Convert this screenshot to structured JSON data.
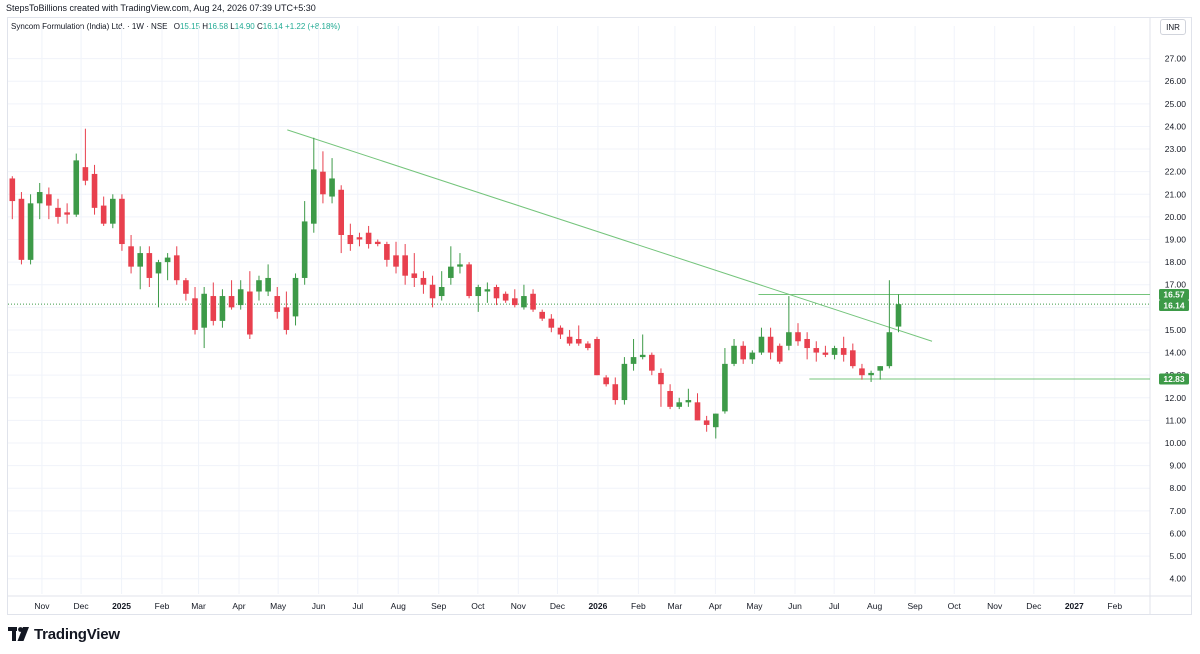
{
  "header": {
    "attribution": "StepsToBillions created with TradingView.com, Aug 24, 2026 07:39 UTC+5:30"
  },
  "legend": {
    "symbol": "Syncom Formulation (India) Ltd. · 1W · NSE",
    "open_label": "O",
    "open": "15.15",
    "high_label": "H",
    "high": "16.58",
    "low_label": "L",
    "low": "14.90",
    "close_label": "C",
    "close": "16.14",
    "change": "+1.22 (+8.18%)"
  },
  "currency": "INR",
  "brand": {
    "name": "TradingView"
  },
  "colors": {
    "up": "#3d9a48",
    "down": "#e8404e",
    "trendline": "#74c47b",
    "grid": "#f0f3fa",
    "axis_text": "#131722",
    "label_bg": "#3d9a48"
  },
  "chart_data": {
    "type": "candlestick",
    "interval": "1W",
    "ylim": [
      3.5,
      28.0
    ],
    "y_ticks": [
      "27.00",
      "26.00",
      "25.00",
      "24.00",
      "23.00",
      "22.00",
      "21.00",
      "20.00",
      "19.00",
      "18.00",
      "17.00",
      "16.00",
      "15.00",
      "14.00",
      "13.00",
      "12.00",
      "11.00",
      "10.00",
      "9.00",
      "8.00",
      "7.00",
      "6.00",
      "5.00",
      "4.00"
    ],
    "x_ticks": [
      {
        "label": "Nov",
        "t": "2024-11-01"
      },
      {
        "label": "Dec",
        "t": "2024-12-01"
      },
      {
        "label": "2025",
        "t": "2025-01-01",
        "bold": true
      },
      {
        "label": "Feb",
        "t": "2025-02-01"
      },
      {
        "label": "Mar",
        "t": "2025-03-01"
      },
      {
        "label": "Apr",
        "t": "2025-04-01"
      },
      {
        "label": "May",
        "t": "2025-05-01"
      },
      {
        "label": "Jun",
        "t": "2025-06-01"
      },
      {
        "label": "Jul",
        "t": "2025-07-01"
      },
      {
        "label": "Aug",
        "t": "2025-08-01"
      },
      {
        "label": "Sep",
        "t": "2025-09-01"
      },
      {
        "label": "Oct",
        "t": "2025-10-01"
      },
      {
        "label": "Nov",
        "t": "2025-11-01"
      },
      {
        "label": "Dec",
        "t": "2025-12-01"
      },
      {
        "label": "2026",
        "t": "2026-01-01",
        "bold": true
      },
      {
        "label": "Feb",
        "t": "2026-02-01"
      },
      {
        "label": "Mar",
        "t": "2026-03-01"
      },
      {
        "label": "Apr",
        "t": "2026-04-01"
      },
      {
        "label": "May",
        "t": "2026-05-01"
      },
      {
        "label": "Jun",
        "t": "2026-06-01"
      },
      {
        "label": "Jul",
        "t": "2026-07-01"
      },
      {
        "label": "Aug",
        "t": "2026-08-01"
      },
      {
        "label": "Sep",
        "t": "2026-09-01"
      },
      {
        "label": "Oct",
        "t": "2026-10-01"
      },
      {
        "label": "Nov",
        "t": "2026-11-01"
      },
      {
        "label": "Dec",
        "t": "2026-12-01"
      },
      {
        "label": "2027",
        "t": "2027-01-01",
        "bold": true
      },
      {
        "label": "Feb",
        "t": "2027-02-01"
      }
    ],
    "x_range": [
      "2024-10-06",
      "2027-02-28"
    ],
    "candles": [
      {
        "t": "2024-10-07",
        "o": 21.7,
        "h": 21.8,
        "l": 19.9,
        "c": 20.7
      },
      {
        "t": "2024-10-14",
        "o": 20.8,
        "h": 21.1,
        "l": 17.9,
        "c": 18.1
      },
      {
        "t": "2024-10-21",
        "o": 18.1,
        "h": 21.0,
        "l": 17.9,
        "c": 20.6
      },
      {
        "t": "2024-10-28",
        "o": 20.6,
        "h": 21.5,
        "l": 19.9,
        "c": 21.1
      },
      {
        "t": "2024-11-04",
        "o": 21.0,
        "h": 21.3,
        "l": 19.9,
        "c": 20.5
      },
      {
        "t": "2024-11-11",
        "o": 20.4,
        "h": 20.8,
        "l": 19.7,
        "c": 20.0
      },
      {
        "t": "2024-11-18",
        "o": 20.2,
        "h": 20.6,
        "l": 19.7,
        "c": 20.1
      },
      {
        "t": "2024-11-25",
        "o": 20.1,
        "h": 22.8,
        "l": 20.0,
        "c": 22.5
      },
      {
        "t": "2024-12-02",
        "o": 22.2,
        "h": 23.9,
        "l": 21.4,
        "c": 21.6
      },
      {
        "t": "2024-12-09",
        "o": 21.9,
        "h": 22.3,
        "l": 20.1,
        "c": 20.4
      },
      {
        "t": "2024-12-16",
        "o": 20.5,
        "h": 20.9,
        "l": 19.6,
        "c": 19.7
      },
      {
        "t": "2024-12-23",
        "o": 19.7,
        "h": 21.0,
        "l": 19.5,
        "c": 20.8
      },
      {
        "t": "2024-12-30",
        "o": 20.8,
        "h": 21.0,
        "l": 18.5,
        "c": 18.8
      },
      {
        "t": "2025-01-06",
        "o": 18.7,
        "h": 19.2,
        "l": 17.5,
        "c": 17.8
      },
      {
        "t": "2025-01-13",
        "o": 17.8,
        "h": 18.7,
        "l": 16.8,
        "c": 18.4
      },
      {
        "t": "2025-01-20",
        "o": 18.4,
        "h": 18.7,
        "l": 16.9,
        "c": 17.3
      },
      {
        "t": "2025-01-27",
        "o": 17.5,
        "h": 18.1,
        "l": 16.0,
        "c": 18.0
      },
      {
        "t": "2025-02-03",
        "o": 18.0,
        "h": 18.4,
        "l": 17.2,
        "c": 18.2
      },
      {
        "t": "2025-02-10",
        "o": 18.3,
        "h": 18.7,
        "l": 17.0,
        "c": 17.2
      },
      {
        "t": "2025-02-17",
        "o": 17.2,
        "h": 17.3,
        "l": 16.3,
        "c": 16.6
      },
      {
        "t": "2025-02-24",
        "o": 16.4,
        "h": 16.9,
        "l": 14.8,
        "c": 15.0
      },
      {
        "t": "2025-03-03",
        "o": 15.1,
        "h": 16.9,
        "l": 14.2,
        "c": 16.6
      },
      {
        "t": "2025-03-10",
        "o": 16.5,
        "h": 17.1,
        "l": 15.2,
        "c": 15.4
      },
      {
        "t": "2025-03-17",
        "o": 15.4,
        "h": 16.8,
        "l": 15.1,
        "c": 16.5
      },
      {
        "t": "2025-03-24",
        "o": 16.5,
        "h": 17.2,
        "l": 15.9,
        "c": 16.0
      },
      {
        "t": "2025-03-31",
        "o": 16.1,
        "h": 17.2,
        "l": 15.9,
        "c": 16.8
      },
      {
        "t": "2025-04-07",
        "o": 16.7,
        "h": 17.6,
        "l": 14.6,
        "c": 14.8
      },
      {
        "t": "2025-04-14",
        "o": 16.7,
        "h": 17.4,
        "l": 16.3,
        "c": 17.2
      },
      {
        "t": "2025-04-21",
        "o": 16.7,
        "h": 17.9,
        "l": 16.5,
        "c": 17.3
      },
      {
        "t": "2025-04-28",
        "o": 16.5,
        "h": 16.9,
        "l": 15.5,
        "c": 15.8
      },
      {
        "t": "2025-05-05",
        "o": 16.0,
        "h": 16.7,
        "l": 14.8,
        "c": 15.0
      },
      {
        "t": "2025-05-12",
        "o": 15.6,
        "h": 17.5,
        "l": 15.2,
        "c": 17.3
      },
      {
        "t": "2025-05-19",
        "o": 17.3,
        "h": 20.7,
        "l": 17.0,
        "c": 19.8
      },
      {
        "t": "2025-05-26",
        "o": 19.7,
        "h": 23.5,
        "l": 19.3,
        "c": 22.1
      },
      {
        "t": "2025-06-02",
        "o": 22.0,
        "h": 22.9,
        "l": 20.6,
        "c": 21.0
      },
      {
        "t": "2025-06-09",
        "o": 20.9,
        "h": 22.6,
        "l": 20.6,
        "c": 21.7
      },
      {
        "t": "2025-06-16",
        "o": 21.2,
        "h": 21.4,
        "l": 18.4,
        "c": 19.2
      },
      {
        "t": "2025-06-23",
        "o": 19.2,
        "h": 19.7,
        "l": 18.5,
        "c": 18.8
      },
      {
        "t": "2025-06-30",
        "o": 19.1,
        "h": 19.3,
        "l": 18.7,
        "c": 19.0
      },
      {
        "t": "2025-07-07",
        "o": 19.3,
        "h": 19.6,
        "l": 18.6,
        "c": 18.8
      },
      {
        "t": "2025-07-14",
        "o": 18.9,
        "h": 19.0,
        "l": 18.7,
        "c": 18.8
      },
      {
        "t": "2025-07-21",
        "o": 18.8,
        "h": 18.9,
        "l": 17.8,
        "c": 18.1
      },
      {
        "t": "2025-07-28",
        "o": 18.3,
        "h": 18.9,
        "l": 17.5,
        "c": 17.8
      },
      {
        "t": "2025-08-04",
        "o": 18.3,
        "h": 18.8,
        "l": 17.0,
        "c": 17.4
      },
      {
        "t": "2025-08-11",
        "o": 17.5,
        "h": 18.4,
        "l": 16.9,
        "c": 17.3
      },
      {
        "t": "2025-08-18",
        "o": 17.3,
        "h": 17.6,
        "l": 16.6,
        "c": 17.0
      },
      {
        "t": "2025-08-25",
        "o": 17.0,
        "h": 17.4,
        "l": 16.0,
        "c": 16.4
      },
      {
        "t": "2025-09-01",
        "o": 16.5,
        "h": 17.6,
        "l": 16.3,
        "c": 16.9
      },
      {
        "t": "2025-09-08",
        "o": 17.3,
        "h": 18.7,
        "l": 17.0,
        "c": 17.8
      },
      {
        "t": "2025-09-15",
        "o": 17.8,
        "h": 18.4,
        "l": 17.5,
        "c": 17.9
      },
      {
        "t": "2025-09-22",
        "o": 17.9,
        "h": 18.0,
        "l": 16.4,
        "c": 16.5
      },
      {
        "t": "2025-09-29",
        "o": 16.5,
        "h": 17.0,
        "l": 15.8,
        "c": 16.9
      },
      {
        "t": "2025-10-06",
        "o": 16.7,
        "h": 17.1,
        "l": 16.2,
        "c": 16.8
      },
      {
        "t": "2025-10-13",
        "o": 16.9,
        "h": 17.0,
        "l": 16.1,
        "c": 16.4
      },
      {
        "t": "2025-10-20",
        "o": 16.6,
        "h": 16.7,
        "l": 16.2,
        "c": 16.3
      },
      {
        "t": "2025-10-27",
        "o": 16.4,
        "h": 16.8,
        "l": 16.0,
        "c": 16.1
      },
      {
        "t": "2025-11-03",
        "o": 16.0,
        "h": 17.0,
        "l": 15.9,
        "c": 16.5
      },
      {
        "t": "2025-11-10",
        "o": 16.6,
        "h": 16.8,
        "l": 15.8,
        "c": 15.9
      },
      {
        "t": "2025-11-17",
        "o": 15.8,
        "h": 15.9,
        "l": 15.4,
        "c": 15.5
      },
      {
        "t": "2025-11-24",
        "o": 15.5,
        "h": 15.7,
        "l": 14.9,
        "c": 15.1
      },
      {
        "t": "2025-12-01",
        "o": 15.1,
        "h": 15.2,
        "l": 14.6,
        "c": 14.8
      },
      {
        "t": "2025-12-08",
        "o": 14.7,
        "h": 15.0,
        "l": 14.3,
        "c": 14.4
      },
      {
        "t": "2025-12-15",
        "o": 14.6,
        "h": 15.2,
        "l": 14.3,
        "c": 14.4
      },
      {
        "t": "2025-12-22",
        "o": 14.4,
        "h": 14.5,
        "l": 14.1,
        "c": 14.2
      },
      {
        "t": "2025-12-29",
        "o": 14.6,
        "h": 14.7,
        "l": 13.0,
        "c": 13.0
      },
      {
        "t": "2026-01-05",
        "o": 12.9,
        "h": 13.0,
        "l": 12.5,
        "c": 12.6
      },
      {
        "t": "2026-01-12",
        "o": 12.6,
        "h": 12.9,
        "l": 11.7,
        "c": 11.9
      },
      {
        "t": "2026-01-19",
        "o": 11.9,
        "h": 13.8,
        "l": 11.7,
        "c": 13.5
      },
      {
        "t": "2026-01-26",
        "o": 13.5,
        "h": 14.6,
        "l": 13.2,
        "c": 13.8
      },
      {
        "t": "2026-02-02",
        "o": 13.8,
        "h": 14.8,
        "l": 13.7,
        "c": 13.9
      },
      {
        "t": "2026-02-09",
        "o": 13.9,
        "h": 14.0,
        "l": 13.0,
        "c": 13.2
      },
      {
        "t": "2026-02-16",
        "o": 13.1,
        "h": 13.3,
        "l": 11.6,
        "c": 12.6
      },
      {
        "t": "2026-02-23",
        "o": 12.3,
        "h": 12.6,
        "l": 11.5,
        "c": 11.6
      },
      {
        "t": "2026-03-02",
        "o": 11.6,
        "h": 12.0,
        "l": 11.5,
        "c": 11.8
      },
      {
        "t": "2026-03-09",
        "o": 11.8,
        "h": 12.4,
        "l": 11.6,
        "c": 11.9
      },
      {
        "t": "2026-03-16",
        "o": 11.8,
        "h": 12.2,
        "l": 11.0,
        "c": 11.0
      },
      {
        "t": "2026-03-23",
        "o": 11.0,
        "h": 11.2,
        "l": 10.5,
        "c": 10.8
      },
      {
        "t": "2026-03-30",
        "o": 10.7,
        "h": 11.3,
        "l": 10.2,
        "c": 11.3
      },
      {
        "t": "2026-04-06",
        "o": 11.4,
        "h": 14.2,
        "l": 11.3,
        "c": 13.5
      },
      {
        "t": "2026-04-13",
        "o": 13.5,
        "h": 14.6,
        "l": 13.4,
        "c": 14.3
      },
      {
        "t": "2026-04-20",
        "o": 14.3,
        "h": 14.5,
        "l": 13.5,
        "c": 13.7
      },
      {
        "t": "2026-04-27",
        "o": 13.7,
        "h": 14.1,
        "l": 13.5,
        "c": 14.0
      },
      {
        "t": "2026-05-04",
        "o": 14.0,
        "h": 15.1,
        "l": 13.9,
        "c": 14.7
      },
      {
        "t": "2026-05-11",
        "o": 14.7,
        "h": 15.1,
        "l": 13.7,
        "c": 14.0
      },
      {
        "t": "2026-05-18",
        "o": 14.3,
        "h": 14.4,
        "l": 13.5,
        "c": 13.6
      },
      {
        "t": "2026-05-25",
        "o": 14.3,
        "h": 16.5,
        "l": 14.1,
        "c": 14.9
      },
      {
        "t": "2026-06-01",
        "o": 14.9,
        "h": 15.3,
        "l": 14.3,
        "c": 14.5
      },
      {
        "t": "2026-06-08",
        "o": 14.6,
        "h": 14.9,
        "l": 13.7,
        "c": 14.2
      },
      {
        "t": "2026-06-15",
        "o": 14.2,
        "h": 14.5,
        "l": 13.6,
        "c": 14.0
      },
      {
        "t": "2026-06-22",
        "o": 14.0,
        "h": 14.3,
        "l": 13.8,
        "c": 13.9
      },
      {
        "t": "2026-06-29",
        "o": 13.9,
        "h": 14.3,
        "l": 13.7,
        "c": 14.2
      },
      {
        "t": "2026-07-06",
        "o": 14.2,
        "h": 14.7,
        "l": 13.6,
        "c": 13.9
      },
      {
        "t": "2026-07-13",
        "o": 14.1,
        "h": 14.4,
        "l": 13.3,
        "c": 13.4
      },
      {
        "t": "2026-07-20",
        "o": 13.3,
        "h": 13.5,
        "l": 12.8,
        "c": 13.0
      },
      {
        "t": "2026-07-27",
        "o": 13.0,
        "h": 13.2,
        "l": 12.7,
        "c": 13.1
      },
      {
        "t": "2026-08-03",
        "o": 13.2,
        "h": 13.4,
        "l": 12.8,
        "c": 13.4
      },
      {
        "t": "2026-08-10",
        "o": 13.4,
        "h": 17.2,
        "l": 13.3,
        "c": 14.9
      },
      {
        "t": "2026-08-17",
        "o": 15.15,
        "h": 16.58,
        "l": 14.9,
        "c": 16.14
      }
    ],
    "trendline": {
      "from": {
        "t": "2025-05-08",
        "v": 23.85
      },
      "to": {
        "t": "2026-09-14",
        "v": 14.5
      }
    },
    "hlines": [
      {
        "from_t": "2026-05-04",
        "to_t": "2027-03-20",
        "v": 16.57
      },
      {
        "from_t": "2026-06-12",
        "to_t": "2027-03-20",
        "v": 12.83
      }
    ],
    "last_price_line": {
      "v": 16.14
    },
    "price_labels": [
      {
        "text": "16.57",
        "v": 16.57
      },
      {
        "text": "16.14",
        "v": 16.14
      },
      {
        "text": "12.83",
        "v": 12.83
      }
    ]
  }
}
